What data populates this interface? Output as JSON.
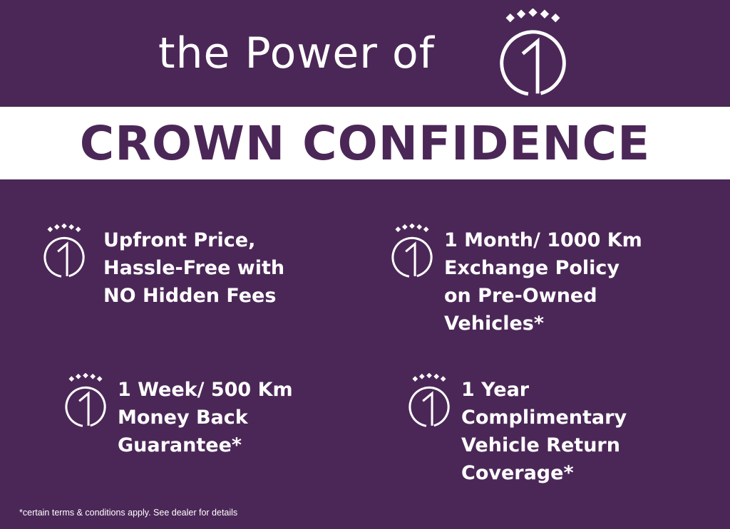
{
  "header": {
    "title": "the Power of",
    "logo": "crown-one-logo"
  },
  "banner": {
    "title": "CROWN CONFIDENCE"
  },
  "features": [
    {
      "icon": "crown-one-icon",
      "lines": [
        "Upfront Price,",
        "Hassle-Free with",
        "NO Hidden Fees"
      ]
    },
    {
      "icon": "crown-one-icon",
      "lines": [
        "1 Month/ 1000 Km",
        "Exchange Policy",
        "on Pre-Owned",
        "Vehicles*"
      ]
    },
    {
      "icon": "crown-one-icon",
      "lines": [
        "1 Week/ 500 Km",
        "Money Back",
        "Guarantee*"
      ]
    },
    {
      "icon": "crown-one-icon",
      "lines": [
        "1 Year",
        "Complimentary",
        "Vehicle Return",
        "Coverage*"
      ]
    }
  ],
  "footer": {
    "disclaimer": "*certain terms & conditions apply. See dealer for details"
  },
  "colors": {
    "background": "#4b2757",
    "band": "#ffffff",
    "text": "#ffffff"
  }
}
